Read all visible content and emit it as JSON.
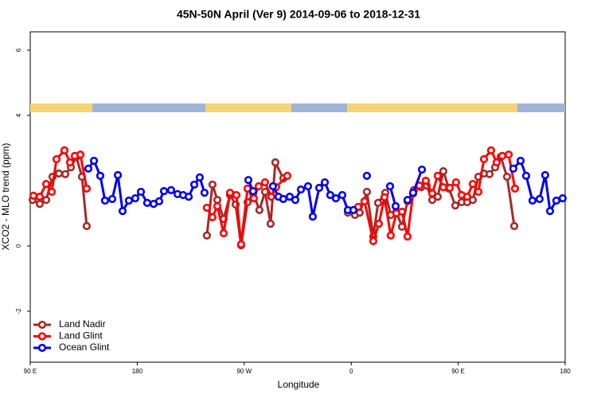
{
  "chart_data": {
    "type": "line",
    "title": "45N-50N April (Ver 9)   2014-09-06 to 2018-12-31",
    "x_label": "Longitude",
    "y_label": "XCO2 - MLO trend (ppm)",
    "xlim": [
      90,
      540
    ],
    "xticks": [
      {
        "value": 90,
        "label": "90 E"
      },
      180,
      {
        "value": 270,
        "label": "90 W"
      },
      {
        "value": 360,
        "label": "0"
      },
      {
        "value": 450,
        "label": "90 E"
      },
      {
        "value": 540,
        "label": "180"
      }
    ],
    "ylim": [
      -3.56,
      6.56
    ],
    "yticks": [
      -2,
      0,
      4,
      6
    ],
    "legend": "bottomleft",
    "series": [
      {
        "name": "Land Nadir",
        "color": "#a52a2a",
        "x": [
          92.0,
          98.0,
          103.4,
          108.7,
          114.1,
          119.5,
          124.2,
          128.8,
          133.5,
          137.5,
          null,
          238.6,
          243.3,
          247.4,
          252.7,
          258.1,
          262.8,
          267.4,
          272.8,
          277.5,
          282.8,
          287.5,
          292.2,
          296.2,
          302.9,
          null,
          357.2,
          363.2,
          367.2,
          373.2,
          378.6,
          382.6,
          388.7,
          393.3,
          398.0,
          402.7,
          407.4,
          412.7,
          418.8,
          423.5,
          428.2,
          432.8,
          437.5,
          442.2,
          447.6,
          452.9,
          457.6,
          462.3,
          467.0,
          471.7,
          476.4,
          481.1,
          485.8,
          491.1,
          497.2
        ],
        "values": [
          1.41,
          1.29,
          1.41,
          2.12,
          2.22,
          2.2,
          2.41,
          2.73,
          2.12,
          0.61,
          null,
          0.32,
          1.88,
          1.41,
          0.83,
          1.56,
          1.27,
          0.02,
          1.34,
          1.61,
          1.1,
          1.66,
          0.68,
          2.56,
          2.07,
          null,
          1.02,
          0.95,
          1.02,
          1.66,
          0.29,
          1.32,
          1.63,
          0.95,
          1.05,
          0.59,
          1.37,
          1.71,
          1.8,
          1.85,
          1.41,
          1.51,
          2.29,
          1.76,
          1.24,
          1.34,
          1.34,
          1.41,
          2.12,
          2.22,
          2.2,
          2.41,
          2.73,
          2.12,
          0.61
        ]
      },
      {
        "name": "Land Glint",
        "color": "#ff0000",
        "x": [
          92.7,
          98.0,
          103.4,
          108.1,
          112.1,
          118.8,
          123.5,
          127.5,
          132.2,
          137.5,
          null,
          238.6,
          243.3,
          247.4,
          252.7,
          258.1,
          263.4,
          267.4,
          272.8,
          278.1,
          282.2,
          287.5,
          292.8,
          296.8,
          306.3,
          null,
          365.9,
          371.2,
          378.6,
          383.3,
          388.0,
          393.3,
          398.0,
          402.7,
          407.4,
          412.1,
          417.4,
          422.8,
          428.2,
          432.8,
          437.5,
          442.9,
          448.2,
          452.9,
          457.6,
          462.3,
          467.0,
          471.7,
          477.7,
          482.4,
          487.1,
          492.5,
          497.8
        ],
        "values": [
          1.54,
          1.51,
          1.9,
          1.66,
          2.66,
          2.93,
          2.56,
          2.76,
          2.8,
          1.76,
          null,
          1.17,
          0.88,
          1.22,
          0.39,
          1.63,
          1.56,
          0.05,
          1.76,
          1.46,
          1.83,
          1.95,
          1.51,
          1.8,
          2.15,
          null,
          1.2,
          1.37,
          0.15,
          0.68,
          1.49,
          0.32,
          1.0,
          1.05,
          0.29,
          1.61,
          1.85,
          2.0,
          1.61,
          2.15,
          1.8,
          1.78,
          1.95,
          1.56,
          1.51,
          1.9,
          1.66,
          2.66,
          2.93,
          2.56,
          2.76,
          2.8,
          1.76
        ]
      },
      {
        "name": "Ocean Glint",
        "color": "#0000ee",
        "x": [
          138.9,
          143.6,
          148.9,
          152.9,
          159.0,
          163.7,
          167.7,
          173.0,
          178.4,
          183.1,
          188.4,
          193.8,
          198.5,
          202.5,
          208.5,
          213.9,
          218.6,
          223.3,
          228.0,
          232.6,
          236.6,
          null,
          273.5,
          277.5,
          null,
          294.2,
          298.9,
          302.9,
          308.3,
          313.0,
          317.7,
          323.7,
          327.7,
          333.1,
          337.8,
          342.4,
          347.1,
          352.5,
          357.2,
          361.9,
          null,
          373.2,
          null,
          392.7,
          397.4,
          null,
          407.4,
          412.1,
          419.5,
          null,
          496.4,
          502.5,
          507.2,
          512.5,
          518.5,
          523.2,
          527.3,
          532.6,
          537.9
        ],
        "values": [
          2.37,
          2.61,
          2.15,
          1.39,
          1.44,
          2.17,
          1.07,
          1.39,
          1.46,
          1.66,
          1.32,
          1.29,
          1.37,
          1.68,
          1.71,
          1.59,
          1.56,
          1.51,
          1.88,
          2.1,
          1.63,
          null,
          2.02,
          1.68,
          null,
          1.83,
          1.51,
          1.44,
          1.51,
          1.41,
          1.73,
          1.83,
          0.9,
          1.78,
          1.95,
          1.56,
          1.46,
          1.56,
          1.1,
          1.1,
          null,
          2.15,
          null,
          1.83,
          1.22,
          null,
          1.41,
          1.63,
          2.34,
          null,
          2.37,
          2.61,
          2.15,
          1.39,
          1.44,
          2.17,
          1.07,
          1.39,
          1.46
        ]
      }
    ]
  }
}
